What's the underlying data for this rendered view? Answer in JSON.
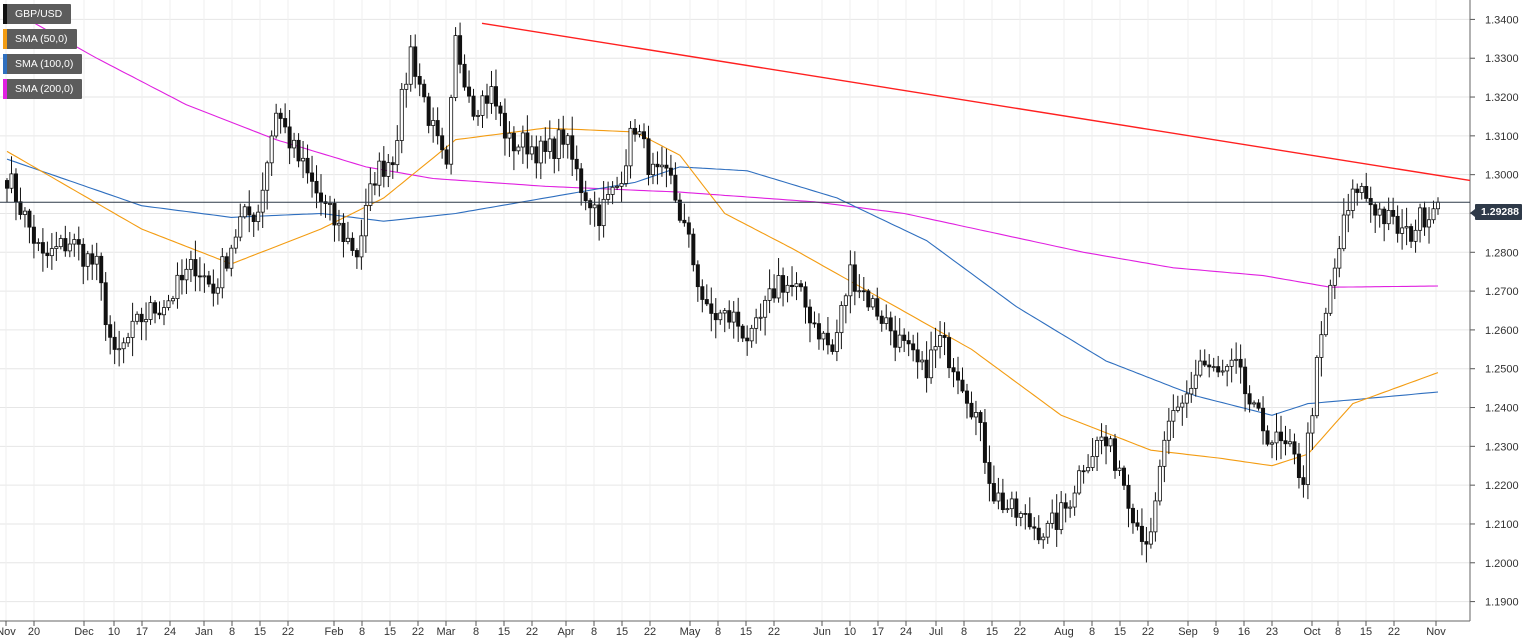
{
  "legend": [
    {
      "label": "GBP/USD",
      "color": "#111111"
    },
    {
      "label": "SMA (50,0)",
      "color": "#f39c12"
    },
    {
      "label": "SMA (100,0)",
      "color": "#2f6fbf"
    },
    {
      "label": "SMA (200,0)",
      "color": "#e020e0"
    }
  ],
  "last_price": "1.29288",
  "chart_data": {
    "type": "candlestick",
    "symbol": "GBP/USD",
    "ylim": [
      1.185,
      1.345
    ],
    "y_ticks": [
      "1.3400",
      "1.3300",
      "1.3200",
      "1.3100",
      "1.3000",
      "1.2900",
      "1.2800",
      "1.2700",
      "1.2600",
      "1.2500",
      "1.2400",
      "1.2300",
      "1.2200",
      "1.2100",
      "1.2000",
      "1.1900"
    ],
    "x_ticks": [
      "Nov",
      "20",
      "Dec",
      "10",
      "17",
      "24",
      "Jan",
      "8",
      "15",
      "22",
      "Feb",
      "8",
      "15",
      "22",
      "Mar",
      "8",
      "15",
      "22",
      "Apr",
      "8",
      "15",
      "22",
      "May",
      "8",
      "15",
      "22",
      "Jun",
      "10",
      "17",
      "24",
      "Jul",
      "8",
      "15",
      "22",
      "Aug",
      "8",
      "15",
      "22",
      "Sep",
      "9",
      "16",
      "23",
      "Oct",
      "8",
      "15",
      "22",
      "Nov"
    ],
    "trendline": {
      "from": [
        1.339
      ],
      "to": [
        1.2985
      ],
      "color": "#ff2020"
    },
    "current_line": 1.29288,
    "close_waypoints": [
      [
        0,
        1.3
      ],
      [
        8,
        1.278
      ],
      [
        14,
        1.283
      ],
      [
        20,
        1.276
      ],
      [
        24,
        1.252
      ],
      [
        30,
        1.263
      ],
      [
        36,
        1.268
      ],
      [
        42,
        1.277
      ],
      [
        46,
        1.27
      ],
      [
        52,
        1.288
      ],
      [
        56,
        1.291
      ],
      [
        60,
        1.317
      ],
      [
        64,
        1.306
      ],
      [
        70,
        1.293
      ],
      [
        74,
        1.286
      ],
      [
        78,
        1.28
      ],
      [
        82,
        1.3
      ],
      [
        86,
        1.305
      ],
      [
        90,
        1.332
      ],
      [
        95,
        1.311
      ],
      [
        98,
        1.3
      ],
      [
        100,
        1.334
      ],
      [
        104,
        1.318
      ],
      [
        108,
        1.321
      ],
      [
        112,
        1.308
      ],
      [
        116,
        1.308
      ],
      [
        120,
        1.305
      ],
      [
        124,
        1.31
      ],
      [
        128,
        1.297
      ],
      [
        132,
        1.29
      ],
      [
        136,
        1.297
      ],
      [
        140,
        1.313
      ],
      [
        144,
        1.3
      ],
      [
        148,
        1.298
      ],
      [
        152,
        1.282
      ],
      [
        156,
        1.264
      ],
      [
        162,
        1.263
      ],
      [
        166,
        1.257
      ],
      [
        172,
        1.273
      ],
      [
        176,
        1.27
      ],
      [
        180,
        1.262
      ],
      [
        184,
        1.254
      ],
      [
        188,
        1.275
      ],
      [
        192,
        1.268
      ],
      [
        196,
        1.262
      ],
      [
        200,
        1.255
      ],
      [
        204,
        1.249
      ],
      [
        208,
        1.257
      ],
      [
        212,
        1.25
      ],
      [
        216,
        1.238
      ],
      [
        220,
        1.218
      ],
      [
        224,
        1.213
      ],
      [
        228,
        1.21
      ],
      [
        232,
        1.208
      ],
      [
        236,
        1.214
      ],
      [
        240,
        1.226
      ],
      [
        244,
        1.232
      ],
      [
        248,
        1.225
      ],
      [
        252,
        1.21
      ],
      [
        255,
        1.205
      ],
      [
        258,
        1.232
      ],
      [
        262,
        1.24
      ],
      [
        266,
        1.252
      ],
      [
        270,
        1.248
      ],
      [
        274,
        1.25
      ],
      [
        278,
        1.238
      ],
      [
        282,
        1.232
      ],
      [
        286,
        1.228
      ],
      [
        289,
        1.222
      ],
      [
        292,
        1.25
      ],
      [
        295,
        1.27
      ],
      [
        298,
        1.287
      ],
      [
        301,
        1.297
      ],
      [
        304,
        1.293
      ],
      [
        308,
        1.288
      ],
      [
        312,
        1.284
      ],
      [
        316,
        1.29
      ],
      [
        319,
        1.2929
      ]
    ],
    "sma50_waypoints": [
      [
        0,
        1.306
      ],
      [
        30,
        1.286
      ],
      [
        50,
        1.277
      ],
      [
        70,
        1.286
      ],
      [
        84,
        1.294
      ],
      [
        100,
        1.309
      ],
      [
        120,
        1.312
      ],
      [
        140,
        1.311
      ],
      [
        150,
        1.305
      ],
      [
        160,
        1.29
      ],
      [
        175,
        1.281
      ],
      [
        195,
        1.268
      ],
      [
        215,
        1.255
      ],
      [
        235,
        1.238
      ],
      [
        255,
        1.229
      ],
      [
        270,
        1.227
      ],
      [
        282,
        1.225
      ],
      [
        290,
        1.228
      ],
      [
        300,
        1.241
      ],
      [
        319,
        1.249
      ]
    ],
    "sma100_waypoints": [
      [
        0,
        1.304
      ],
      [
        30,
        1.292
      ],
      [
        50,
        1.289
      ],
      [
        70,
        1.29
      ],
      [
        84,
        1.288
      ],
      [
        100,
        1.29
      ],
      [
        120,
        1.294
      ],
      [
        140,
        1.298
      ],
      [
        150,
        1.302
      ],
      [
        165,
        1.301
      ],
      [
        185,
        1.294
      ],
      [
        205,
        1.283
      ],
      [
        225,
        1.266
      ],
      [
        245,
        1.252
      ],
      [
        265,
        1.243
      ],
      [
        282,
        1.238
      ],
      [
        290,
        1.241
      ],
      [
        300,
        1.242
      ],
      [
        319,
        1.244
      ]
    ],
    "sma200_waypoints": [
      [
        0,
        1.343
      ],
      [
        20,
        1.33
      ],
      [
        40,
        1.318
      ],
      [
        60,
        1.309
      ],
      [
        80,
        1.302
      ],
      [
        95,
        1.299
      ],
      [
        120,
        1.297
      ],
      [
        150,
        1.2955
      ],
      [
        180,
        1.293
      ],
      [
        200,
        1.29
      ],
      [
        220,
        1.285
      ],
      [
        240,
        1.28
      ],
      [
        260,
        1.276
      ],
      [
        280,
        1.274
      ],
      [
        295,
        1.271
      ],
      [
        319,
        1.2713
      ]
    ]
  }
}
